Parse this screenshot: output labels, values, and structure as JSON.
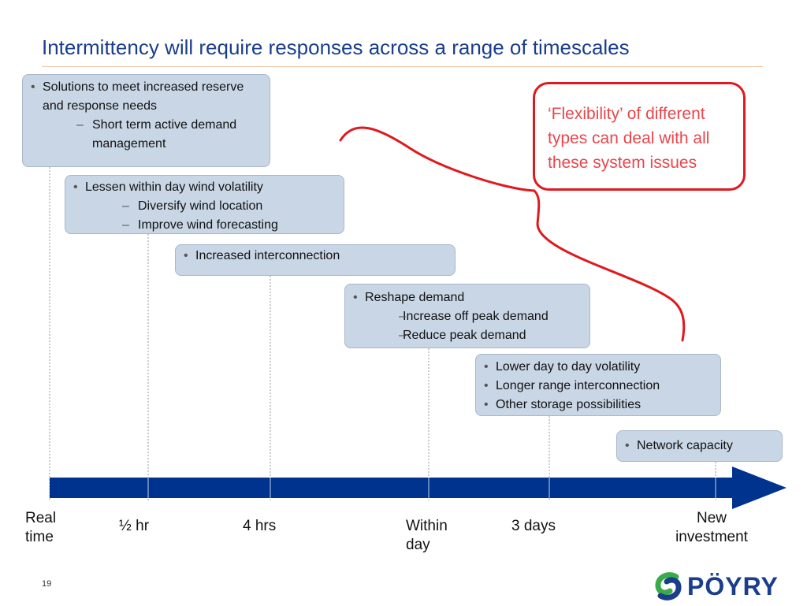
{
  "title": "Intermittency will require responses across a range of timescales",
  "boxes": [
    {
      "bullet": "Solutions to meet increased reserve and response needs",
      "sub": [
        "Short term active demand management"
      ]
    },
    {
      "bullet": "Lessen within day wind volatility",
      "sub": [
        "Diversify wind location",
        "Improve wind forecasting"
      ]
    },
    {
      "bullet": "Increased interconnection"
    },
    {
      "bullet": "Reshape demand",
      "sub": [
        "Increase off peak demand",
        "Reduce peak demand"
      ]
    },
    {
      "bullets": [
        "Lower day to day volatility",
        "Longer range interconnection",
        "Other storage possibilities"
      ]
    },
    {
      "bullet": "Network capacity"
    }
  ],
  "callout": "‘Flexibility’ of different types can deal with all these system issues",
  "timeline": {
    "labels": [
      "Real time",
      "½ hr",
      "4 hrs",
      "Within day",
      "3 days",
      "New investment"
    ]
  },
  "colors": {
    "title": "#1a3e8c",
    "arrow": "#00338d",
    "box_fill": "#c9d6e6",
    "callout_border": "#e0191e",
    "callout_text": "#e8464b",
    "logo_green": "#3bab4a"
  },
  "page_number": "19",
  "logo": {
    "name": "pöyry-logo",
    "text": "PÖYRY"
  }
}
